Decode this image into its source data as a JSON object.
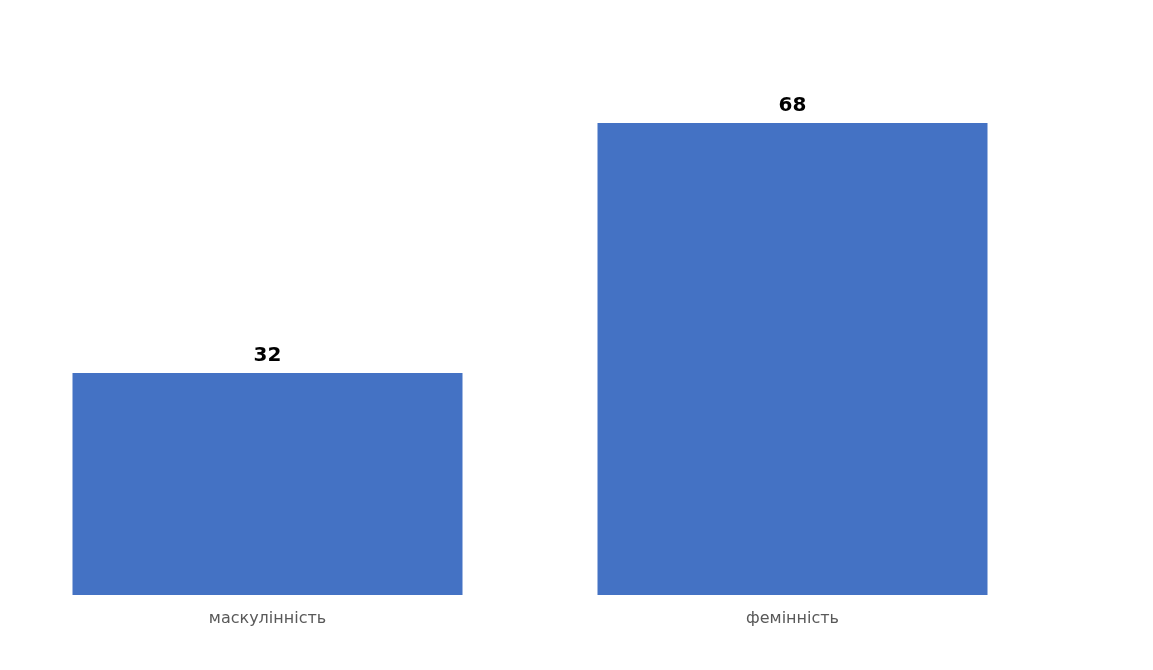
{
  "chart_data": {
    "type": "bar",
    "categories": [
      "маскулінність",
      "фемінність"
    ],
    "values": [
      32,
      68
    ],
    "color": "#4472c4",
    "data_labels": true
  }
}
